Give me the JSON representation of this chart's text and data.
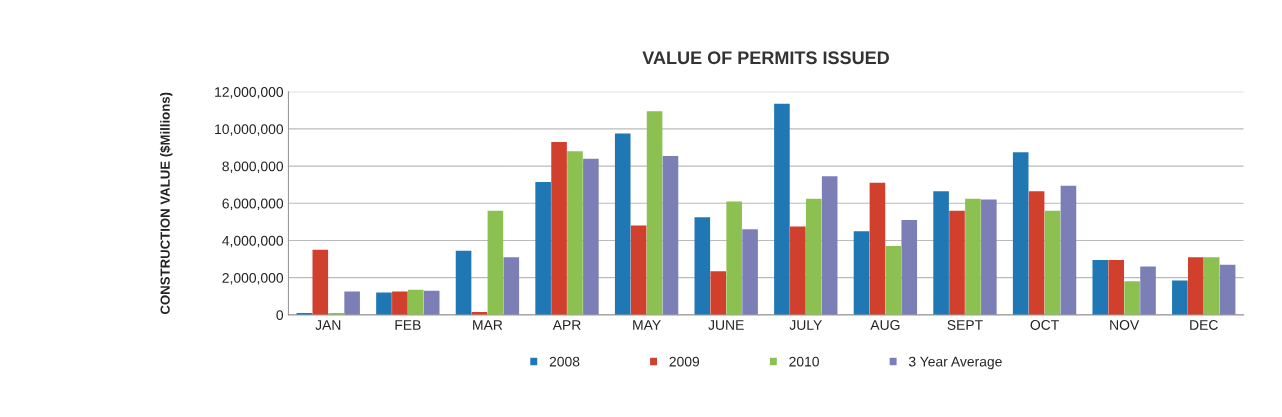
{
  "chart_data": {
    "type": "bar",
    "title": "VALUE OF PERMITS ISSUED",
    "ylabel": "CONSTRUCTION VALUE ($Millions)",
    "categories": [
      "JAN",
      "FEB",
      "MAR",
      "APR",
      "MAY",
      "JUNE",
      "JULY",
      "AUG",
      "SEPT",
      "OCT",
      "NOV",
      "DEC"
    ],
    "series": [
      {
        "name": "2008",
        "color": "#1f77b4",
        "values": [
          100000,
          1200000,
          3450000,
          7150000,
          9750000,
          5250000,
          11350000,
          4500000,
          6650000,
          8750000,
          2950000,
          1850000
        ]
      },
      {
        "name": "2009",
        "color": "#d0402c",
        "values": [
          3500000,
          1250000,
          150000,
          9300000,
          4800000,
          2350000,
          4750000,
          7100000,
          5600000,
          6650000,
          2950000,
          3100000
        ]
      },
      {
        "name": "2010",
        "color": "#8cc152",
        "values": [
          100000,
          1350000,
          5600000,
          8800000,
          10950000,
          6100000,
          6250000,
          3700000,
          6250000,
          5600000,
          1800000,
          3100000
        ]
      },
      {
        "name": "3 Year Average",
        "color": "#7b7fb6",
        "values": [
          1250000,
          1300000,
          3100000,
          8400000,
          8550000,
          4600000,
          7450000,
          5100000,
          6200000,
          6950000,
          2600000,
          2700000
        ]
      }
    ],
    "ylim": [
      0,
      12000000
    ],
    "yticks": [
      {
        "value": 0,
        "label": "0"
      },
      {
        "value": 2000000,
        "label": "2,000,000"
      },
      {
        "value": 4000000,
        "label": "4,000,000"
      },
      {
        "value": 6000000,
        "label": "6,000,000"
      },
      {
        "value": 8000000,
        "label": "8,000,000"
      },
      {
        "value": 10000000,
        "label": "10,000,000"
      },
      {
        "value": 12000000,
        "label": "12,000,000"
      }
    ],
    "grid": "y",
    "legend": "bottom"
  }
}
